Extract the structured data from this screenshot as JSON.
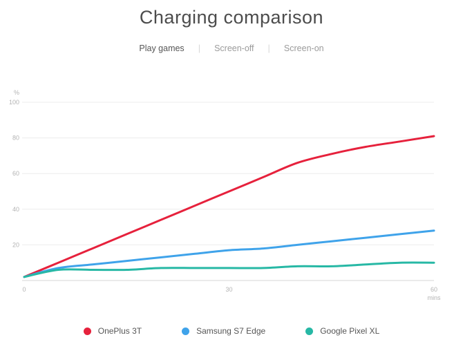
{
  "title": "Charging comparison",
  "tabs": [
    {
      "label": "Play games",
      "active": true
    },
    {
      "label": "Screen-off",
      "active": false
    },
    {
      "label": "Screen-on",
      "active": false
    }
  ],
  "separator": "|",
  "chart_data": {
    "type": "line",
    "title": "Charging comparison",
    "xlabel": "mins",
    "ylabel": "%",
    "xlim": [
      0,
      60
    ],
    "ylim": [
      0,
      100
    ],
    "xticks": [
      0,
      30,
      60
    ],
    "yticks": [
      0,
      20,
      40,
      60,
      80,
      100
    ],
    "grid": true,
    "legend_position": "bottom",
    "x": [
      0,
      5,
      10,
      15,
      20,
      25,
      30,
      35,
      40,
      45,
      50,
      55,
      60
    ],
    "series": [
      {
        "name": "OnePlus 3T",
        "color": "#e6213c",
        "values": [
          2,
          10,
          18,
          26,
          34,
          42,
          50,
          58,
          66,
          71,
          75,
          78,
          81
        ]
      },
      {
        "name": "Samsung S7 Edge",
        "color": "#3fa3ea",
        "values": [
          2,
          7,
          9,
          11,
          13,
          15,
          17,
          18,
          20,
          22,
          24,
          26,
          28
        ]
      },
      {
        "name": "Google Pixel XL",
        "color": "#27b8a5",
        "values": [
          2,
          6,
          6,
          6,
          7,
          7,
          7,
          7,
          8,
          8,
          9,
          10,
          10
        ]
      }
    ]
  }
}
